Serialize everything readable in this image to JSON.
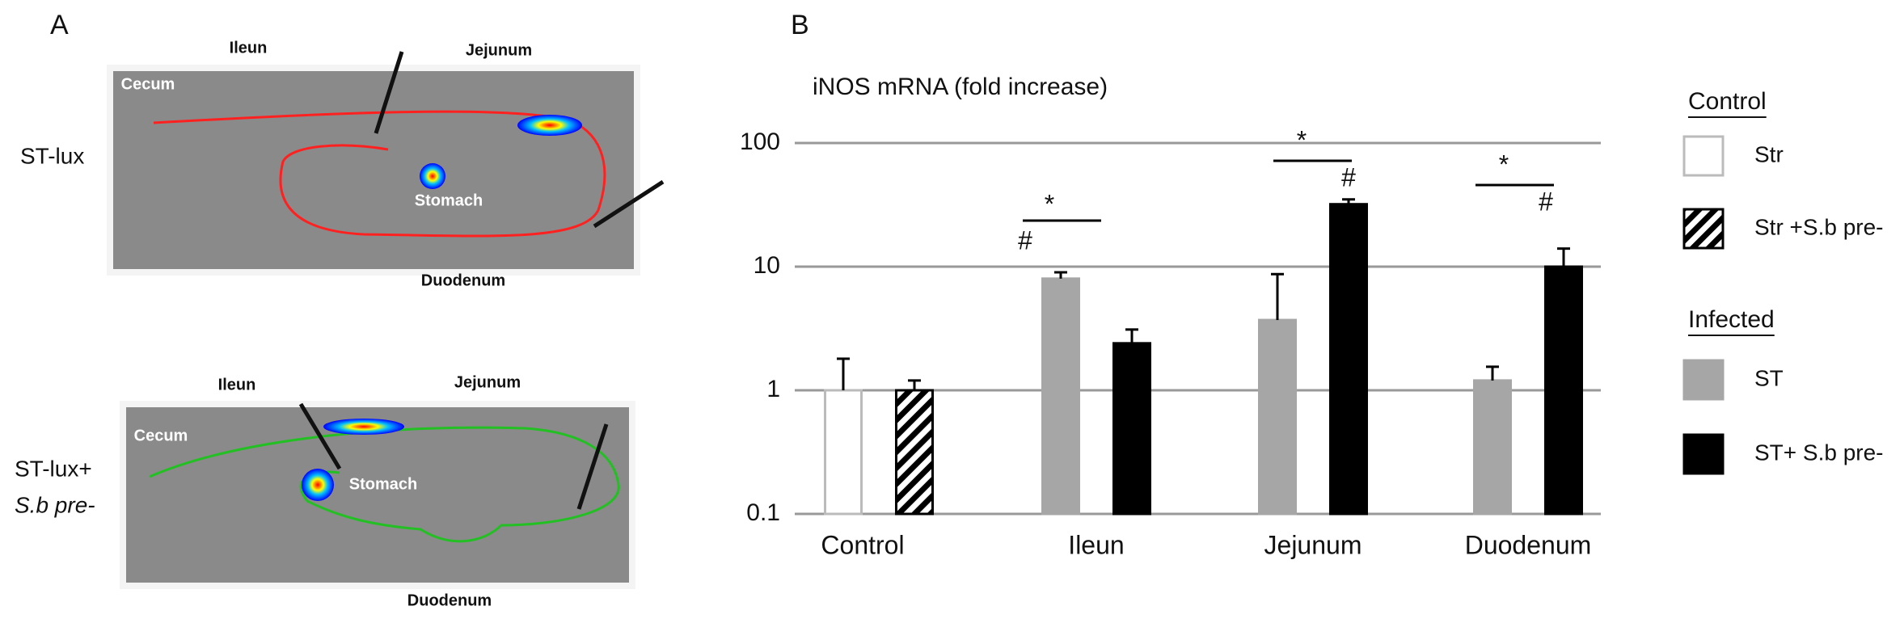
{
  "panel_a": {
    "label": "A",
    "images": [
      {
        "row_label": [
          "ST-lux"
        ],
        "ileum": "Ileun",
        "jejunum": "Jejunum",
        "cecum": "Cecum",
        "stomach": "Stomach",
        "duodenum": "Duodenum"
      },
      {
        "row_label": [
          "ST-lux+",
          "S.b pre-"
        ],
        "ileum": "Ileun",
        "jejunum": "Jejunum",
        "cecum": "Cecum",
        "stomach": "Stomach",
        "duodenum": "Duodenum"
      }
    ]
  },
  "chart_data": {
    "type": "bar",
    "panel_label": "B",
    "title": "iNOS mRNA (fold increase)",
    "categories": [
      "Control",
      "Ileun",
      "Jejunum",
      "Duodenum"
    ],
    "log_scale": true,
    "grid": true,
    "ylim": [
      0.1,
      100
    ],
    "yticks": [
      0.1,
      1,
      10,
      100
    ],
    "legend_groups": [
      "Control",
      "Infected"
    ],
    "series": [
      {
        "name": "Str",
        "color": "#ffffff",
        "values": [
          1,
          null,
          null,
          null
        ],
        "errors": [
          0.8,
          null,
          null,
          null
        ]
      },
      {
        "name": "Str +S.b pre-",
        "color": "hatch",
        "values": [
          1,
          null,
          null,
          null
        ],
        "errors": [
          0.2,
          null,
          null,
          null
        ]
      },
      {
        "name": "ST",
        "color": "#a6a6a6",
        "values": [
          null,
          8,
          3.7,
          1.2
        ],
        "errors": [
          null,
          1,
          5,
          0.35
        ]
      },
      {
        "name": "ST+ S.b pre-",
        "color": "#000000",
        "values": [
          null,
          2.4,
          32,
          10
        ],
        "errors": [
          null,
          0.7,
          3,
          4
        ]
      }
    ],
    "annotations": [
      "*",
      "#",
      "*",
      "#",
      "*",
      "#"
    ]
  }
}
